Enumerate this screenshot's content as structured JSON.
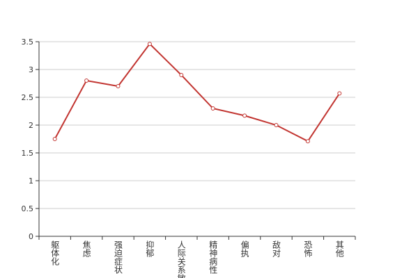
{
  "chart_data": {
    "type": "line",
    "categories": [
      "躯体化",
      "焦虑",
      "强迫症状",
      "抑郁",
      "人际关系敏感",
      "精神病性",
      "偏执",
      "敌对",
      "恐怖",
      "其他"
    ],
    "series": [
      {
        "color": "#c23531",
        "values": [
          1.75,
          2.8,
          2.7,
          3.46,
          2.9,
          2.3,
          2.17,
          2.0,
          1.71,
          2.57
        ]
      }
    ],
    "ylim": [
      0,
      3.5
    ],
    "yticks": [
      0,
      0.5,
      1,
      1.5,
      2,
      2.5,
      3,
      3.5
    ],
    "grid": true
  }
}
